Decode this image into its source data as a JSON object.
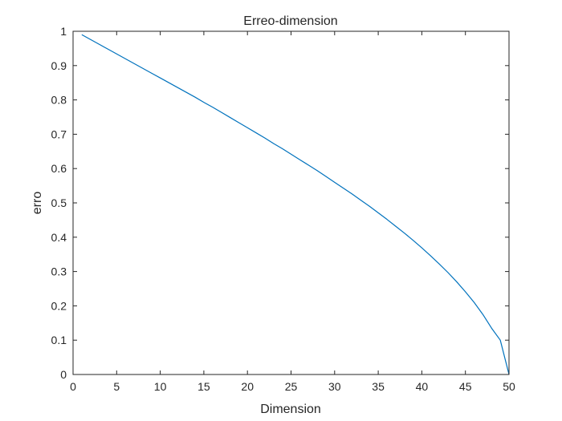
{
  "chart_data": {
    "type": "line",
    "title": "Erreo-dimension",
    "xlabel": "Dimension",
    "ylabel": "erro",
    "xlim": [
      0,
      50
    ],
    "ylim": [
      0,
      1
    ],
    "xticks": [
      "0",
      "5",
      "10",
      "15",
      "20",
      "25",
      "30",
      "35",
      "40",
      "45",
      "50"
    ],
    "yticks": [
      "0",
      "0.1",
      "0.2",
      "0.3",
      "0.4",
      "0.5",
      "0.6",
      "0.7",
      "0.8",
      "0.9",
      "1"
    ],
    "grid": false,
    "box": true,
    "series": [
      {
        "color": "#0072BD",
        "x": [
          1,
          2,
          3,
          4,
          5,
          6,
          7,
          8,
          9,
          10,
          11,
          12,
          13,
          14,
          15,
          16,
          17,
          18,
          19,
          20,
          21,
          22,
          23,
          24,
          25,
          26,
          27,
          28,
          29,
          30,
          31,
          32,
          33,
          34,
          35,
          36,
          37,
          38,
          39,
          40,
          41,
          42,
          43,
          44,
          45,
          46,
          47,
          48,
          49,
          50
        ],
        "y": [
          0.99,
          0.976,
          0.962,
          0.948,
          0.934,
          0.92,
          0.906,
          0.892,
          0.878,
          0.864,
          0.85,
          0.836,
          0.822,
          0.808,
          0.793,
          0.779,
          0.764,
          0.749,
          0.734,
          0.719,
          0.704,
          0.689,
          0.673,
          0.658,
          0.642,
          0.626,
          0.61,
          0.594,
          0.577,
          0.56,
          0.543,
          0.526,
          0.508,
          0.49,
          0.471,
          0.452,
          0.432,
          0.412,
          0.391,
          0.369,
          0.346,
          0.322,
          0.297,
          0.27,
          0.241,
          0.21,
          0.175,
          0.135,
          0.1,
          0.0
        ]
      }
    ]
  }
}
